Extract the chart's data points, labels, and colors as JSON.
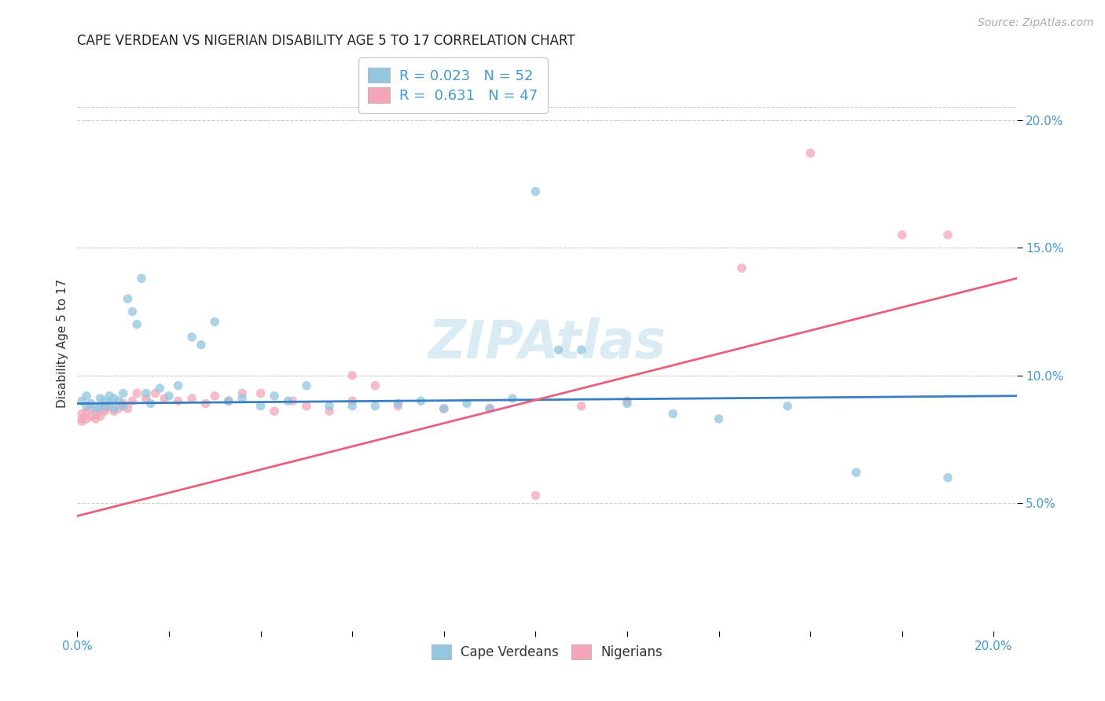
{
  "title": "CAPE VERDEAN VS NIGERIAN DISABILITY AGE 5 TO 17 CORRELATION CHART",
  "source": "Source: ZipAtlas.com",
  "ylabel": "Disability Age 5 to 17",
  "xlim": [
    0.0,
    0.205
  ],
  "ylim": [
    0.0,
    0.225
  ],
  "blue_color": "#92c5de",
  "pink_color": "#f4a6b8",
  "blue_line_color": "#3a7fc1",
  "pink_line_color": "#e8607a",
  "legend_blue_r": "0.023",
  "legend_blue_n": "52",
  "legend_pink_r": "0.631",
  "legend_pink_n": "47",
  "watermark_text": "ZIPAtlas",
  "title_color": "#222222",
  "source_color": "#aaaaaa",
  "tick_color": "#4499cc",
  "ylabel_color": "#333333",
  "grid_color": "#cccccc",
  "blue_line_y0": 0.089,
  "blue_line_y1": 0.092,
  "pink_line_y0": 0.045,
  "pink_line_y1": 0.138,
  "blue_x": [
    0.001,
    0.002,
    0.002,
    0.003,
    0.004,
    0.005,
    0.005,
    0.006,
    0.006,
    0.007,
    0.007,
    0.008,
    0.008,
    0.009,
    0.01,
    0.01,
    0.011,
    0.012,
    0.013,
    0.014,
    0.015,
    0.016,
    0.018,
    0.02,
    0.022,
    0.025,
    0.027,
    0.03,
    0.033,
    0.036,
    0.04,
    0.043,
    0.046,
    0.05,
    0.055,
    0.06,
    0.065,
    0.07,
    0.075,
    0.08,
    0.085,
    0.09,
    0.095,
    0.1,
    0.105,
    0.11,
    0.12,
    0.13,
    0.14,
    0.155,
    0.17,
    0.19
  ],
  "blue_y": [
    0.09,
    0.092,
    0.088,
    0.089,
    0.087,
    0.091,
    0.088,
    0.09,
    0.088,
    0.092,
    0.089,
    0.087,
    0.091,
    0.09,
    0.093,
    0.088,
    0.13,
    0.125,
    0.12,
    0.138,
    0.093,
    0.089,
    0.095,
    0.092,
    0.096,
    0.115,
    0.112,
    0.121,
    0.09,
    0.091,
    0.088,
    0.092,
    0.09,
    0.096,
    0.088,
    0.088,
    0.088,
    0.089,
    0.09,
    0.087,
    0.089,
    0.087,
    0.091,
    0.172,
    0.11,
    0.11,
    0.089,
    0.085,
    0.083,
    0.088,
    0.062,
    0.06
  ],
  "pink_x": [
    0.001,
    0.001,
    0.001,
    0.002,
    0.002,
    0.003,
    0.003,
    0.004,
    0.004,
    0.005,
    0.005,
    0.006,
    0.006,
    0.007,
    0.008,
    0.009,
    0.01,
    0.011,
    0.012,
    0.013,
    0.015,
    0.017,
    0.019,
    0.022,
    0.025,
    0.028,
    0.03,
    0.033,
    0.036,
    0.04,
    0.043,
    0.047,
    0.05,
    0.055,
    0.06,
    0.065,
    0.07,
    0.08,
    0.09,
    0.1,
    0.11,
    0.12,
    0.145,
    0.16,
    0.18,
    0.19,
    0.06
  ],
  "pink_y": [
    0.082,
    0.083,
    0.085,
    0.083,
    0.086,
    0.084,
    0.087,
    0.085,
    0.083,
    0.086,
    0.084,
    0.086,
    0.087,
    0.088,
    0.086,
    0.087,
    0.089,
    0.087,
    0.09,
    0.093,
    0.091,
    0.093,
    0.091,
    0.09,
    0.091,
    0.089,
    0.092,
    0.09,
    0.093,
    0.093,
    0.086,
    0.09,
    0.088,
    0.086,
    0.09,
    0.096,
    0.088,
    0.087,
    0.087,
    0.053,
    0.088,
    0.09,
    0.142,
    0.187,
    0.155,
    0.155,
    0.1
  ]
}
